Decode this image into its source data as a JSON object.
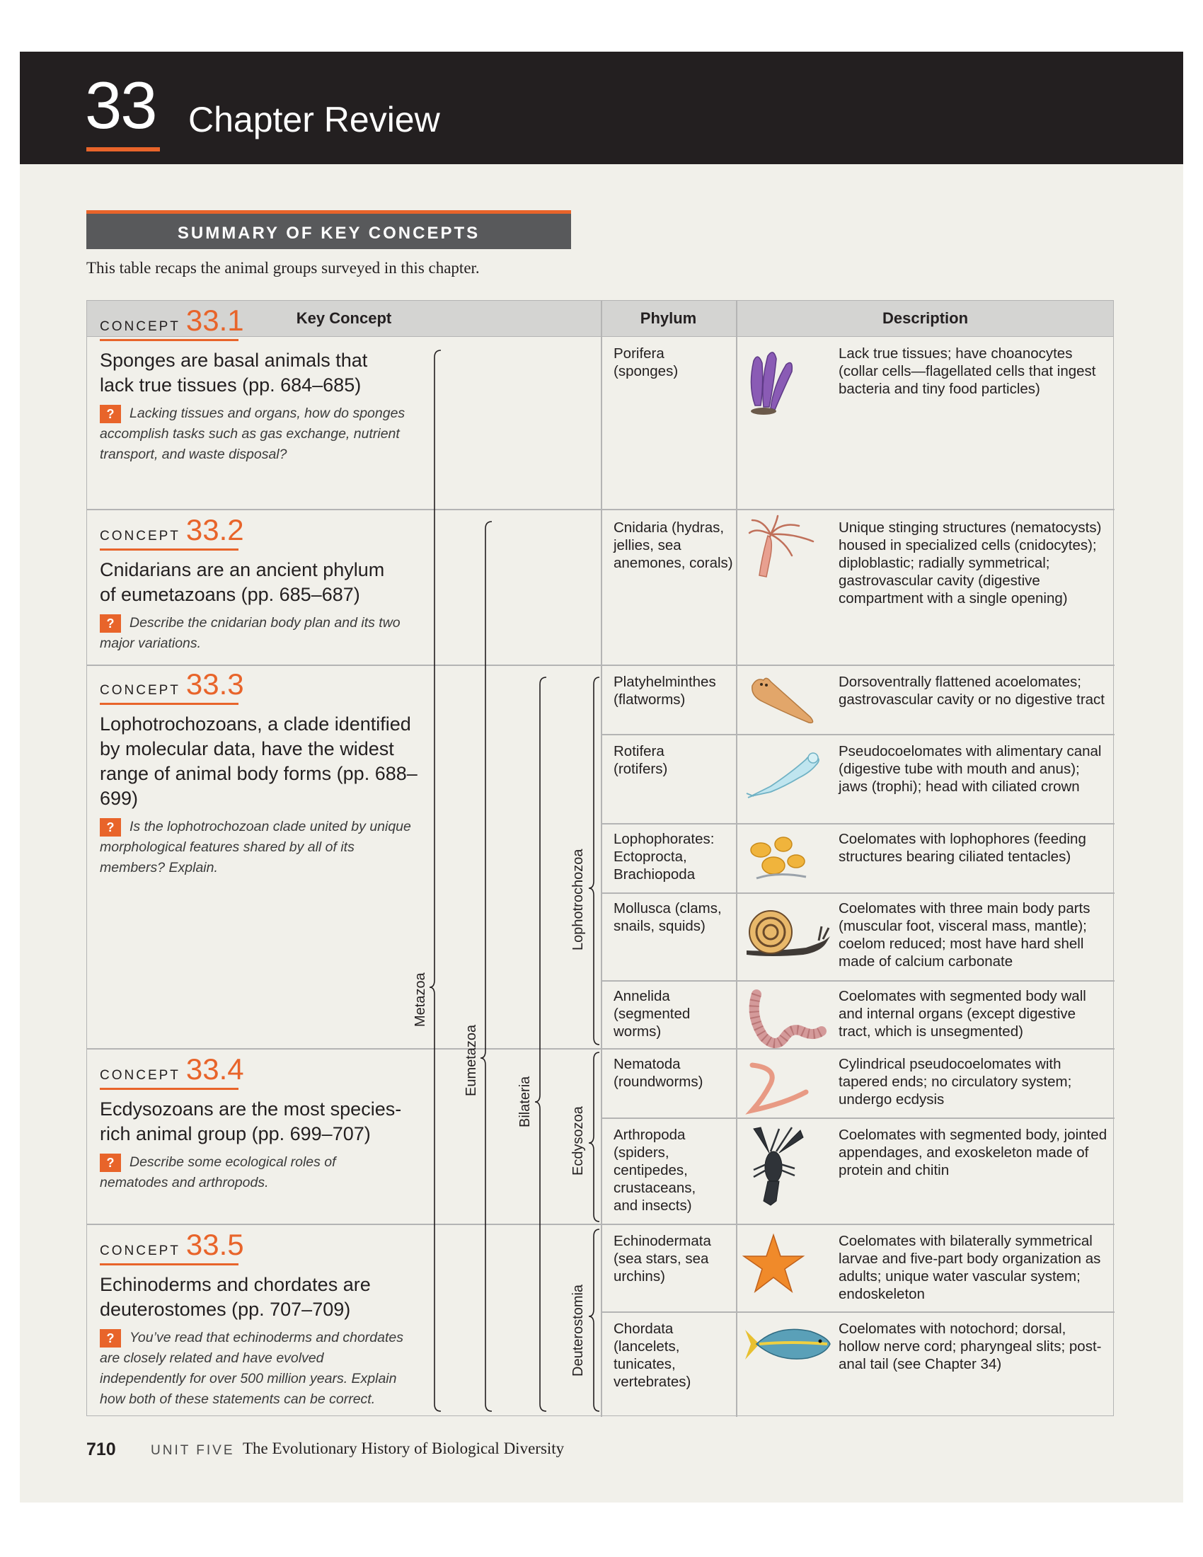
{
  "chapter": {
    "number": "33",
    "title": "Chapter Review"
  },
  "summary": {
    "heading": "SUMMARY OF KEY CONCEPTS",
    "intro": "This table recaps the animal groups surveyed in this chapter."
  },
  "table": {
    "headers": {
      "key_concept": "Key Concept",
      "phylum": "Phylum",
      "description": "Description"
    },
    "concepts": [
      {
        "label": "CONCEPT",
        "number": "33.1",
        "title": "Sponges are basal animals that lack true tissues (pp. 684–685)",
        "question": "Lacking tissues and organs, how do sponges accomplish tasks such as gas exchange, nutrient transport, and waste disposal?"
      },
      {
        "label": "CONCEPT",
        "number": "33.2",
        "title": "Cnidarians are an ancient phylum of eumetazoans (pp. 685–687)",
        "question": "Describe the cnidarian body plan and its two major variations."
      },
      {
        "label": "CONCEPT",
        "number": "33.3",
        "title": "Lophotrochozoans, a clade identified by molecular data, have the widest range of animal body forms (pp. 688–699)",
        "question": "Is the lophotrochozoan clade united by unique morphological features shared by all of its members? Explain."
      },
      {
        "label": "CONCEPT",
        "number": "33.4",
        "title": "Ecdysozoans are the most species-rich animal group (pp. 699–707)",
        "question": "Describe some ecological roles of nematodes and arthropods."
      },
      {
        "label": "CONCEPT",
        "number": "33.5",
        "title": "Echinoderms and chordates are deuterostomes (pp. 707–709)",
        "question": "You’ve read that echinoderms and chordates are closely related and have evolved independently for over 500 million years. Explain how both of these statements can be correct."
      }
    ],
    "clades": {
      "metazoa": "Metazoa",
      "eumetazoa": "Eumetazoa",
      "bilateria": "Bilateria",
      "lophotrochozoa": "Lophotrochozoa",
      "ecdysozoa": "Ecdysozoa",
      "deuterostomia": "Deuterostomia"
    },
    "phyla": [
      {
        "name": "Porifera (sponges)",
        "description": "Lack true tissues; have choanocytes (collar cells—flagellated cells that ingest bacteria and tiny food particles)",
        "icon": "sponge-icon"
      },
      {
        "name": "Cnidaria (hydras, jellies, sea anemones, corals)",
        "description": "Unique stinging structures (nematocysts) housed in specialized cells (cnidocytes); diploblastic; radially symmetrical; gastrovascular cavity (digestive compartment with a single opening)",
        "icon": "hydra-icon"
      },
      {
        "name": "Platyhelminthes (flatworms)",
        "description": "Dorsoventrally flattened acoelomates; gastrovascular cavity or no digestive tract",
        "icon": "flatworm-icon"
      },
      {
        "name": "Rotifera (rotifers)",
        "description": "Pseudocoelomates with alimentary canal (digestive tube with mouth and anus); jaws (trophi); head with ciliated crown",
        "icon": "rotifer-icon"
      },
      {
        "name": "Lophophorates: Ectoprocta, Brachiopoda",
        "description": "Coelomates with lophophores (feeding structures bearing ciliated tentacles)",
        "icon": "lophophorate-icon"
      },
      {
        "name": "Mollusca (clams, snails, squids)",
        "description": "Coelomates with three main body parts (muscular foot, visceral mass, mantle); coelom reduced; most have hard shell made of calcium carbonate",
        "icon": "snail-icon"
      },
      {
        "name": "Annelida (segmented worms)",
        "description": "Coelomates with segmented body wall and internal organs (except digestive tract, which is unsegmented)",
        "icon": "earthworm-icon"
      },
      {
        "name": "Nematoda (roundworms)",
        "description": "Cylindrical pseudocoelomates with tapered ends; no circulatory system; undergo ecdysis",
        "icon": "roundworm-icon"
      },
      {
        "name": "Arthropoda (spiders, centipedes, crustaceans, and insects)",
        "description": "Coelomates with segmented body, jointed appendages, and exoskeleton made of protein and chitin",
        "icon": "lobster-icon"
      },
      {
        "name": "Echinodermata (sea stars, sea urchins)",
        "description": "Coelomates with bilaterally symmetrical larvae and five-part body organization as adults; unique water vascular system; endoskeleton",
        "icon": "sea-star-icon"
      },
      {
        "name": "Chordata (lancelets, tunicates, vertebrates)",
        "description": "Coelomates with notochord; dorsal, hollow nerve cord; pharyngeal slits; post-anal tail (see Chapter 34)",
        "icon": "fish-icon"
      }
    ]
  },
  "footer": {
    "page": "710",
    "unit": "UNIT FIVE",
    "title": "The Evolutionary History of Biological Diversity"
  },
  "colors": {
    "accent": "#e8642a",
    "header_bg": "#231f20",
    "page_bg": "#f1f0ea"
  }
}
